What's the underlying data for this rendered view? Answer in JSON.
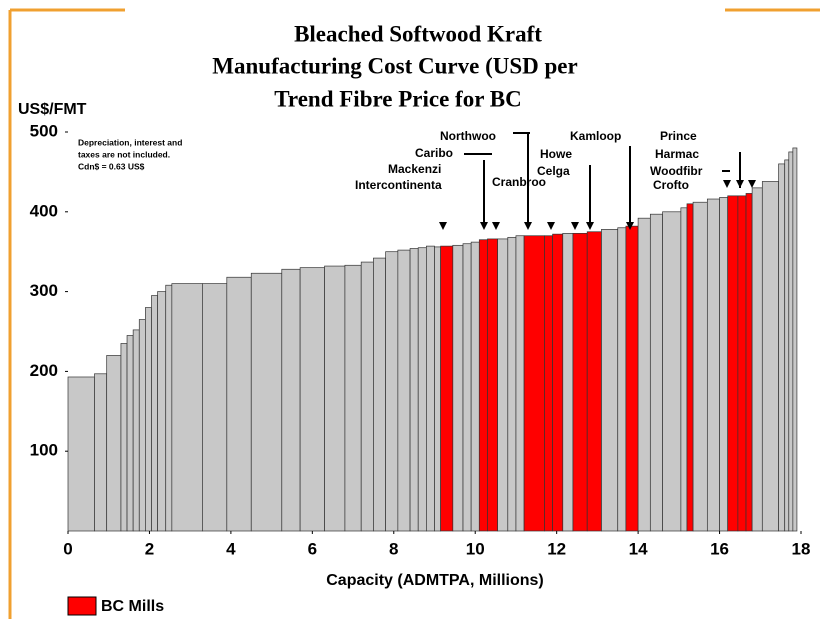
{
  "chart_data": {
    "type": "histogram",
    "title": [
      "Bleached Softwood Kraft",
      "Manufacturing Cost Curve (USD per",
      "Trend Fibre Price for BC"
    ],
    "y_label": "US$/FMT",
    "x_label": "Capacity (ADMTPA, Millions)",
    "notes": [
      "Depreciation, interest and",
      "taxes are not included.",
      "Cdn$ = 0.63 US$"
    ],
    "annotations": [
      "Northwoo",
      "Caribo",
      "Mackenzi",
      "Intercontinenta",
      "Cranbroo",
      "Howe",
      "Celga",
      "Kamloop",
      "Prince",
      "Harmac",
      "Woodfibr",
      "Crofto"
    ],
    "legend": {
      "name": "BC Mills",
      "color": "#ff0000"
    },
    "bins": [
      0,
      0.65,
      0.95,
      1.3,
      1.45,
      1.6,
      1.75,
      1.9,
      2.05,
      2.2,
      2.4,
      2.55,
      3.3,
      3.9,
      4.5,
      5.25,
      5.7,
      6.3,
      6.8,
      7.2,
      7.5,
      7.8,
      8.1,
      8.4,
      8.6,
      8.8,
      9.0,
      9.15,
      9.45,
      9.7,
      9.9,
      10.1,
      10.3,
      10.55,
      10.8,
      11.0,
      11.2,
      11.7,
      11.9,
      12.15,
      12.4,
      12.75,
      13.1,
      13.5,
      13.7,
      14.0,
      14.3,
      14.6,
      15.05,
      15.2,
      15.35,
      15.7,
      16.0,
      16.2,
      16.45,
      16.65,
      16.8,
      17.05,
      17.45,
      17.6,
      17.7,
      17.8,
      17.9
    ],
    "values": [
      193,
      197,
      220,
      235,
      245,
      252,
      265,
      280,
      295,
      300,
      308,
      310,
      310,
      318,
      323,
      328,
      330,
      332,
      333,
      337,
      342,
      350,
      352,
      354,
      355,
      357,
      356,
      357,
      358,
      360,
      362,
      365,
      366,
      366,
      368,
      370,
      370,
      370,
      372,
      373,
      373,
      375,
      378,
      380,
      382,
      392,
      397,
      400,
      405,
      410,
      412,
      416,
      418,
      420,
      420,
      423,
      430,
      438,
      460,
      465,
      475,
      480
    ],
    "colors": [
      "#c8c8c8",
      "#c8c8c8",
      "#c8c8c8",
      "#c8c8c8",
      "#c8c8c8",
      "#c8c8c8",
      "#c8c8c8",
      "#c8c8c8",
      "#c8c8c8",
      "#c8c8c8",
      "#c8c8c8",
      "#c8c8c8",
      "#c8c8c8",
      "#c8c8c8",
      "#c8c8c8",
      "#c8c8c8",
      "#c8c8c8",
      "#c8c8c8",
      "#c8c8c8",
      "#c8c8c8",
      "#c8c8c8",
      "#c8c8c8",
      "#c8c8c8",
      "#c8c8c8",
      "#c8c8c8",
      "#c8c8c8",
      "#c8c8c8",
      "#ff0000",
      "#c8c8c8",
      "#c8c8c8",
      "#c8c8c8",
      "#ff0000",
      "#ff0000",
      "#c8c8c8",
      "#c8c8c8",
      "#c8c8c8",
      "#ff0000",
      "#ff0000",
      "#ff0000",
      "#c8c8c8",
      "#ff0000",
      "#ff0000",
      "#c8c8c8",
      "#c8c8c8",
      "#ff0000",
      "#c8c8c8",
      "#c8c8c8",
      "#c8c8c8",
      "#c8c8c8",
      "#ff0000",
      "#c8c8c8",
      "#c8c8c8",
      "#c8c8c8",
      "#ff0000",
      "#ff0000",
      "#ff0000",
      "#c8c8c8",
      "#c8c8c8",
      "#c8c8c8",
      "#c8c8c8",
      "#c8c8c8",
      "#c8c8c8"
    ],
    "xlim": [
      0,
      18
    ],
    "xticks": [
      0,
      2,
      4,
      6,
      8,
      10,
      12,
      14,
      16,
      18
    ],
    "ylim": [
      0,
      500
    ],
    "yticks": [
      100,
      200,
      300,
      400,
      500
    ]
  }
}
